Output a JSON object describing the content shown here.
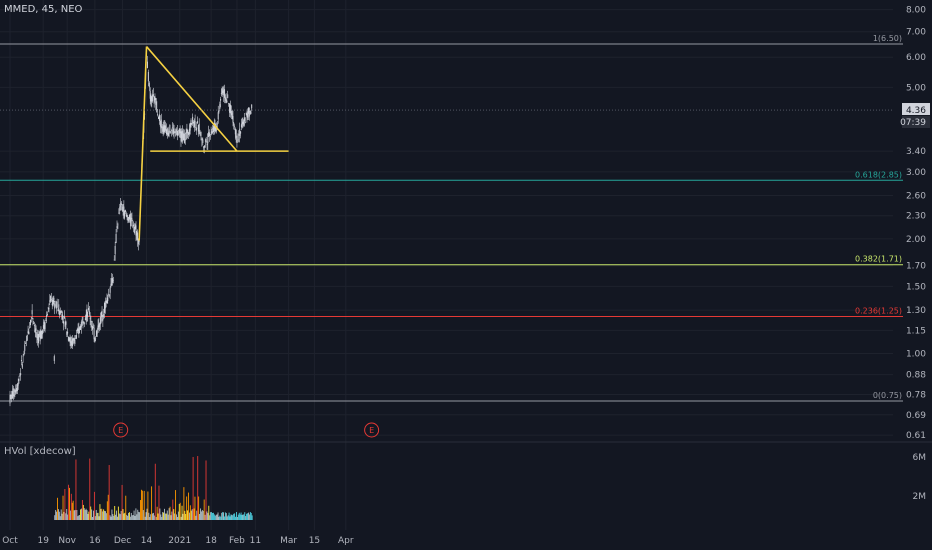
{
  "header": {
    "symbol_line": "MMED, 45, NEO"
  },
  "volume_panel": {
    "label": "HVol [xdecow]"
  },
  "colors": {
    "background": "#131722",
    "grid": "#1e222d",
    "candle": "#d1d4dc",
    "triangle": "#f5d142",
    "fib_top": "#9598a1",
    "fib_0618": "#26a69a",
    "fib_0382": "#c8e66b",
    "fib_0236": "#e53935",
    "fib_bottom": "#9598a1",
    "vol_orange": "#ff9800",
    "vol_red": "#e53935",
    "vol_yellow": "#ffeb3b",
    "vol_cyan": "#4dd0e1",
    "vol_gray": "#b0bec5",
    "earnings": "#e53935"
  },
  "chart_data": {
    "type": "candlestick",
    "y_scale": "log",
    "y_ticks": [
      "8.00",
      "7.00",
      "6.00",
      "5.00",
      "4.36",
      "3.40",
      "3.00",
      "2.60",
      "2.30",
      "2.00",
      "1.70",
      "1.50",
      "1.30",
      "1.15",
      "1.00",
      "0.88",
      "0.78",
      "0.69",
      "0.61"
    ],
    "x_ticks": [
      "Oct",
      "19",
      "Nov",
      "16",
      "Dec",
      "14",
      "2021",
      "18",
      "Feb",
      "11",
      "Mar",
      "15",
      "Apr"
    ],
    "last_price": "4.36",
    "countdown": "07:39",
    "fib_levels": [
      {
        "label": "1(6.50)",
        "value": 6.5,
        "color": "#9598a1"
      },
      {
        "label": "0.618(2.85)",
        "value": 2.85,
        "color": "#26a69a"
      },
      {
        "label": "0.382(1.71)",
        "value": 1.71,
        "color": "#c8e66b"
      },
      {
        "label": "0.236(1.25)",
        "value": 1.25,
        "color": "#e53935"
      },
      {
        "label": "0(0.75)",
        "value": 0.75,
        "color": "#9598a1"
      }
    ],
    "trendlines": [
      {
        "from": [
          "Dec 10",
          1.98
        ],
        "to": [
          "Dec 14",
          6.4
        ]
      },
      {
        "from": [
          "Dec 14",
          6.4
        ],
        "to": [
          "Feb 1",
          3.4
        ]
      },
      {
        "from": [
          "Dec 16",
          3.4
        ],
        "to": [
          "Mar 1",
          3.4
        ]
      }
    ],
    "price_path": [
      [
        "Sep 28",
        0.98
      ],
      [
        "Oct 1",
        0.76
      ],
      [
        "Oct 5",
        0.82
      ],
      [
        "Oct 9",
        1.02
      ],
      [
        "Oct 13",
        1.28
      ],
      [
        "Oct 16",
        1.08
      ],
      [
        "Oct 20",
        1.2
      ],
      [
        "Oct 23",
        1.38
      ],
      [
        "Oct 27",
        1.32
      ],
      [
        "Oct 30",
        1.25
      ],
      [
        "Nov 3",
        1.06
      ],
      [
        "Nov 6",
        1.1
      ],
      [
        "Nov 10",
        1.25
      ],
      [
        "Nov 13",
        1.28
      ],
      [
        "Nov 16",
        1.1
      ],
      [
        "Nov 19",
        1.22
      ],
      [
        "Nov 23",
        1.4
      ],
      [
        "Nov 26",
        1.6
      ],
      [
        "Nov 28",
        2.15
      ],
      [
        "Nov 30",
        2.45
      ],
      [
        "Dec 3",
        2.3
      ],
      [
        "Dec 7",
        2.2
      ],
      [
        "Dec 10",
        1.98
      ],
      [
        "Dec 11",
        2.7
      ],
      [
        "Dec 12",
        3.5
      ],
      [
        "Dec 13",
        4.4
      ],
      [
        "Dec 14",
        6.3
      ],
      [
        "Dec 15",
        5.3
      ],
      [
        "Dec 16",
        4.7
      ],
      [
        "Dec 19",
        4.6
      ],
      [
        "Dec 21",
        4.15
      ],
      [
        "Dec 23",
        3.9
      ],
      [
        "Dec 28",
        3.85
      ],
      [
        "Jan 4",
        3.7
      ],
      [
        "Jan 8",
        4.1
      ],
      [
        "Jan 12",
        3.85
      ],
      [
        "Jan 14",
        3.5
      ],
      [
        "Jan 18",
        3.85
      ],
      [
        "Jan 21",
        3.95
      ],
      [
        "Jan 24",
        4.95
      ],
      [
        "Jan 27",
        4.6
      ],
      [
        "Jan 29",
        4.3
      ],
      [
        "Feb 1",
        3.7
      ],
      [
        "Feb 3",
        3.85
      ],
      [
        "Feb 6",
        4.2
      ],
      [
        "Feb 9",
        4.36
      ]
    ],
    "earnings_markers": [
      {
        "label": "E",
        "date": "Nov 30"
      },
      {
        "label": "E",
        "date": "Apr 15"
      }
    ],
    "volume_ticks": [
      "6M",
      "2M"
    ]
  }
}
